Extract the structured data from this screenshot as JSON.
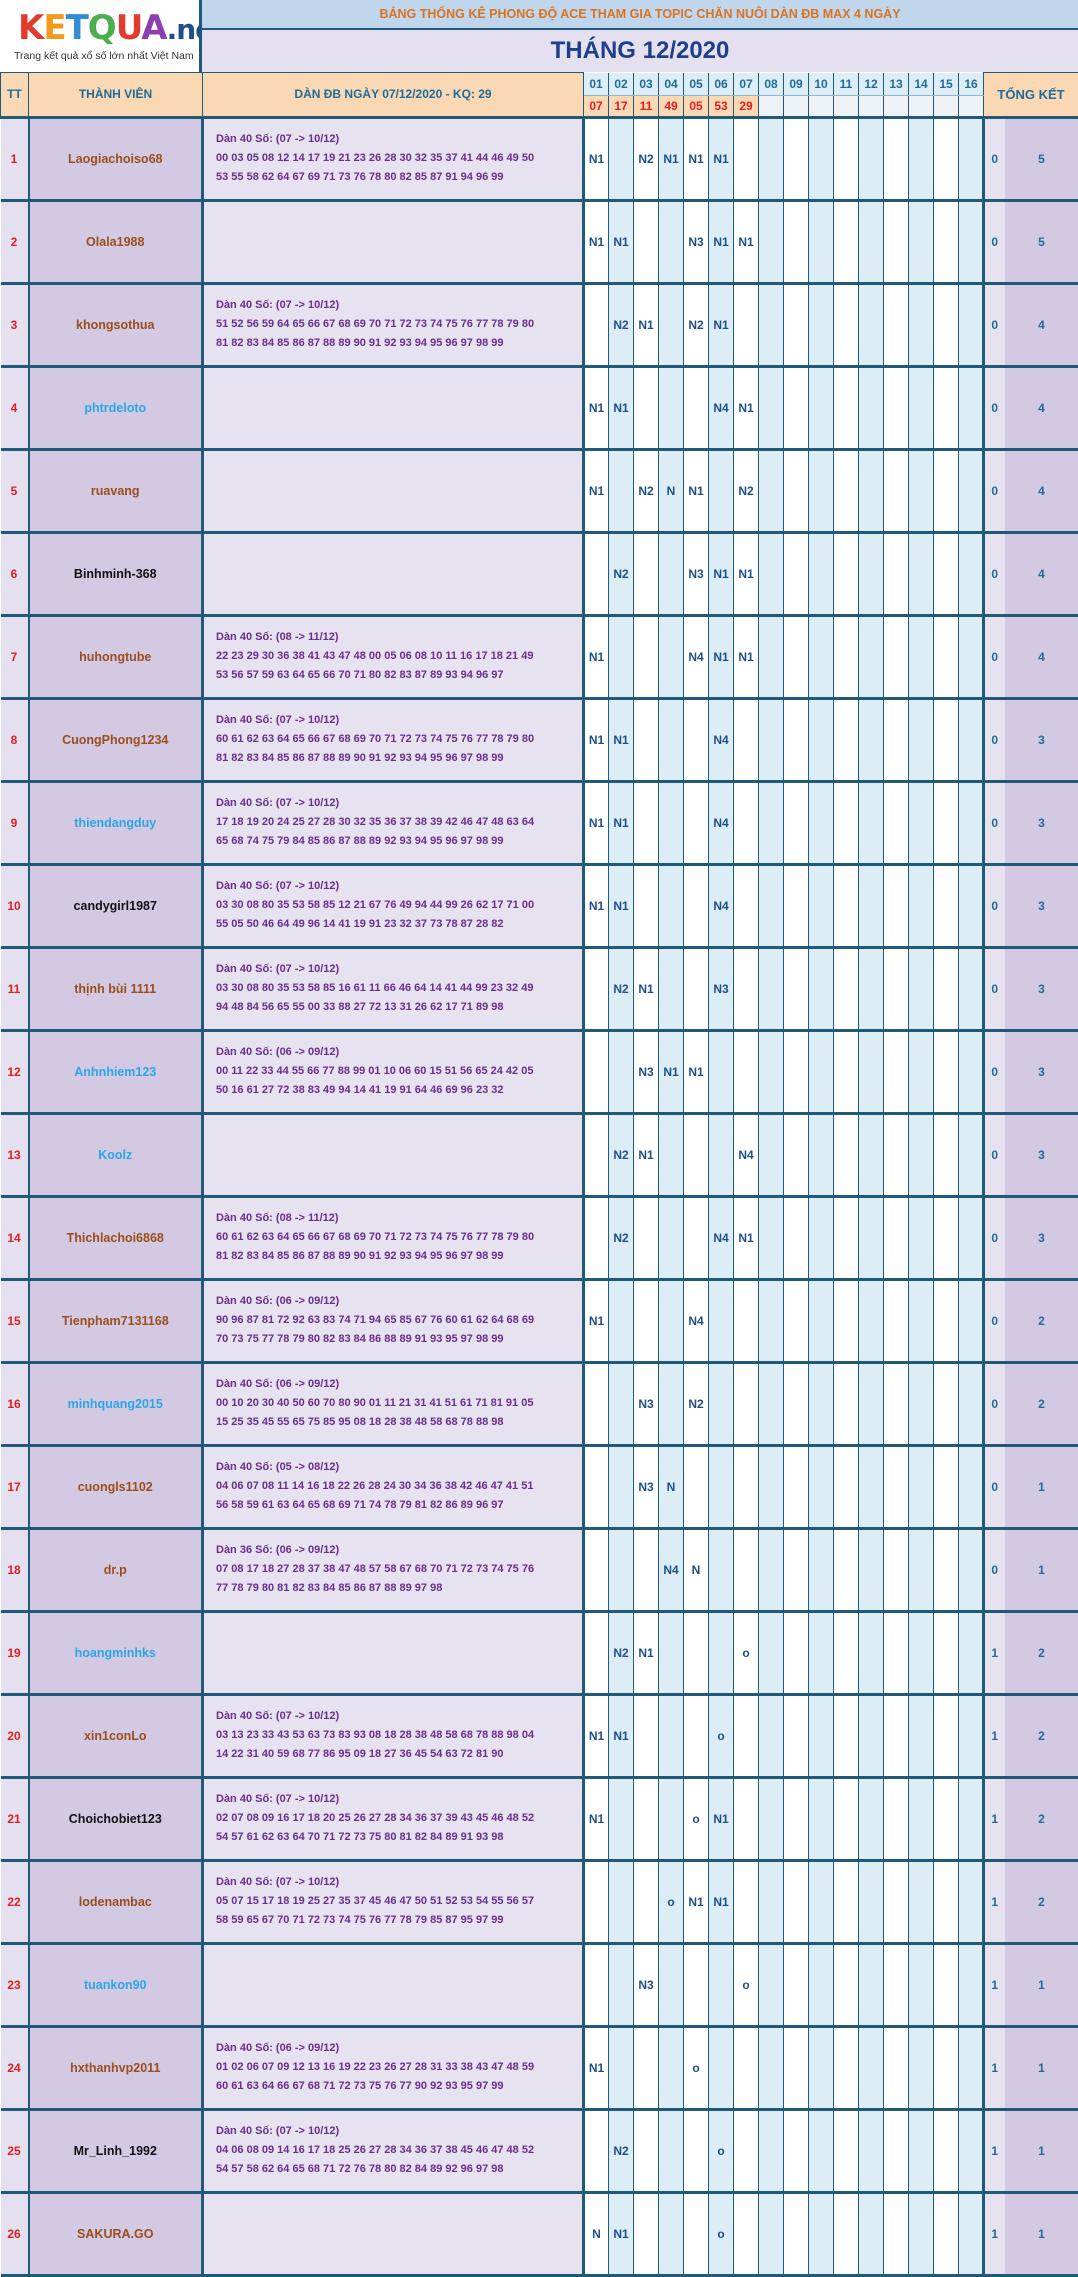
{
  "logo": {
    "word_k": "K",
    "word_e": "E",
    "word_t": "T",
    "word_q": "Q",
    "word_u": "U",
    "word_a": "A",
    "word_net": ".net",
    "tagline": "Trang kết quả xổ số lớn nhất Việt Nam"
  },
  "header": {
    "title": "BẢNG THỐNG KÊ PHONG ĐỘ ACE THAM GIA TOPIC CHĂN NUÔI DÀN ĐB MAX 4 NGÀY",
    "month": "THÁNG 12/2020",
    "col_tt": "TT",
    "col_member": "THÀNH VIÊN",
    "col_dan": "DÀN ĐB NGÀY 07/12/2020 - KQ: 29",
    "col_total": "TỔNG KẾT"
  },
  "days": [
    "01",
    "02",
    "03",
    "04",
    "05",
    "06",
    "07",
    "08",
    "09",
    "10",
    "11",
    "12",
    "13",
    "14",
    "15",
    "16"
  ],
  "results": [
    "07",
    "17",
    "11",
    "49",
    "05",
    "53",
    "29",
    "",
    "",
    "",
    "",
    "",
    "",
    "",
    "",
    ""
  ],
  "colors": {
    "brown": "#9a4e1c",
    "blue": "#2aa6e8",
    "black": "#111111"
  },
  "rows": [
    {
      "tt": "1",
      "member": "Laogiachoiso68",
      "color": "brown",
      "dan": [
        "Dàn 40 Số: (07 -> 10/12)",
        "00 03 05 08 12 14 17 19 21 23 26 28 30 32 35 37 41 44 46 49 50",
        "53 55 58 62 64 67 69 71 73 76 78 80 82 85 87 91 94 96 99"
      ],
      "cells": [
        "N1",
        "",
        "N2",
        "N1",
        "N1",
        "N1",
        "",
        "",
        "",
        "",
        "",
        "",
        "",
        "",
        "",
        ""
      ],
      "s1": "0",
      "s2": "5"
    },
    {
      "tt": "2",
      "member": "Olala1988",
      "color": "brown",
      "dan": [],
      "cells": [
        "N1",
        "N1",
        "",
        "",
        "N3",
        "N1",
        "N1",
        "",
        "",
        "",
        "",
        "",
        "",
        "",
        "",
        ""
      ],
      "s1": "0",
      "s2": "5"
    },
    {
      "tt": "3",
      "member": "khongsothua",
      "color": "brown",
      "dan": [
        "Dàn 40 Số: (07 -> 10/12)",
        "51 52 56 59 64 65 66 67 68 69 70 71 72 73 74 75 76 77 78 79 80",
        "81 82 83 84 85 86 87 88 89 90 91 92 93 94 95 96 97 98 99"
      ],
      "cells": [
        "",
        "N2",
        "N1",
        "",
        "N2",
        "N1",
        "",
        "",
        "",
        "",
        "",
        "",
        "",
        "",
        "",
        ""
      ],
      "s1": "0",
      "s2": "4"
    },
    {
      "tt": "4",
      "member": "phtrdeloto",
      "color": "blue",
      "dan": [],
      "cells": [
        "N1",
        "N1",
        "",
        "",
        "",
        "N4",
        "N1",
        "",
        "",
        "",
        "",
        "",
        "",
        "",
        "",
        ""
      ],
      "s1": "0",
      "s2": "4"
    },
    {
      "tt": "5",
      "member": "ruavang",
      "color": "brown",
      "dan": [],
      "cells": [
        "N1",
        "",
        "N2",
        "N",
        "N1",
        "",
        "N2",
        "",
        "",
        "",
        "",
        "",
        "",
        "",
        "",
        ""
      ],
      "s1": "0",
      "s2": "4"
    },
    {
      "tt": "6",
      "member": "Binhminh-368",
      "color": "black",
      "dan": [],
      "cells": [
        "",
        "N2",
        "",
        "",
        "N3",
        "N1",
        "N1",
        "",
        "",
        "",
        "",
        "",
        "",
        "",
        "",
        ""
      ],
      "s1": "0",
      "s2": "4"
    },
    {
      "tt": "7",
      "member": "huhongtube",
      "color": "brown",
      "dan": [
        "Dàn 40 Số: (08 -> 11/12)",
        "22 23 29 30 36 38 41 43 47 48 00 05 06 08 10 11 16 17 18 21 49",
        "53 56 57 59 63 64 65 66 70 71 80 82 83 87 89 93 94 96 97"
      ],
      "cells": [
        "N1",
        "",
        "",
        "",
        "N4",
        "N1",
        "N1",
        "",
        "",
        "",
        "",
        "",
        "",
        "",
        "",
        ""
      ],
      "s1": "0",
      "s2": "4"
    },
    {
      "tt": "8",
      "member": "CuongPhong1234",
      "color": "brown",
      "dan": [
        "Dàn 40 Số: (07 -> 10/12)",
        "60 61 62 63 64 65 66 67 68 69 70 71 72 73 74 75 76 77 78 79 80",
        "81 82 83 84 85 86 87 88 89 90 91 92 93 94 95 96 97 98 99"
      ],
      "cells": [
        "N1",
        "N1",
        "",
        "",
        "",
        "N4",
        "",
        "",
        "",
        "",
        "",
        "",
        "",
        "",
        "",
        ""
      ],
      "s1": "0",
      "s2": "3"
    },
    {
      "tt": "9",
      "member": "thiendangduy",
      "color": "blue",
      "dan": [
        "Dàn 40 Số: (07 -> 10/12)",
        "17 18 19 20 24 25 27 28 30 32 35 36 37 38 39 42 46 47 48 63 64",
        "65 68 74 75 79 84 85 86 87 88 89 92 93 94 95 96 97 98 99"
      ],
      "cells": [
        "N1",
        "N1",
        "",
        "",
        "",
        "N4",
        "",
        "",
        "",
        "",
        "",
        "",
        "",
        "",
        "",
        ""
      ],
      "s1": "0",
      "s2": "3"
    },
    {
      "tt": "10",
      "member": "candygirl1987",
      "color": "black",
      "dan": [
        "Dàn 40 Số: (07 -> 10/12)",
        "03 30 08 80 35 53 58 85 12 21 67 76 49 94 44 99 26 62 17 71 00",
        "55 05 50 46 64 49 96 14 41 19 91 23 32 37 73 78 87 28 82"
      ],
      "cells": [
        "N1",
        "N1",
        "",
        "",
        "",
        "N4",
        "",
        "",
        "",
        "",
        "",
        "",
        "",
        "",
        "",
        ""
      ],
      "s1": "0",
      "s2": "3"
    },
    {
      "tt": "11",
      "member": "thịnh bùi 1111",
      "color": "brown",
      "dan": [
        "Dàn 40 Số: (07 -> 10/12)",
        "03 30 08 80 35 53 58 85 16 61 11 66 46 64 14 41 44 99 23 32 49",
        "94 48 84 56 65 55 00 33 88 27 72 13 31 26 62 17 71 89 98"
      ],
      "cells": [
        "",
        "N2",
        "N1",
        "",
        "",
        "N3",
        "",
        "",
        "",
        "",
        "",
        "",
        "",
        "",
        "",
        ""
      ],
      "s1": "0",
      "s2": "3"
    },
    {
      "tt": "12",
      "member": "Anhnhiem123",
      "color": "blue",
      "dan": [
        "Dàn 40 Số: (06 -> 09/12)",
        "00 11 22 33 44 55 66 77 88 99 01 10 06 60 15 51 56 65 24 42 05",
        "50 16 61 27 72 38 83 49 94 14 41 19 91 64 46 69 96 23 32"
      ],
      "cells": [
        "",
        "",
        "N3",
        "N1",
        "N1",
        "",
        "",
        "",
        "",
        "",
        "",
        "",
        "",
        "",
        "",
        ""
      ],
      "s1": "0",
      "s2": "3"
    },
    {
      "tt": "13",
      "member": "Koolz",
      "color": "blue",
      "dan": [],
      "cells": [
        "",
        "N2",
        "N1",
        "",
        "",
        "",
        "N4",
        "",
        "",
        "",
        "",
        "",
        "",
        "",
        "",
        ""
      ],
      "s1": "0",
      "s2": "3"
    },
    {
      "tt": "14",
      "member": "Thichlachoi6868",
      "color": "brown",
      "dan": [
        "Dàn 40 Số: (08 -> 11/12)",
        "60 61 62 63 64 65 66 67 68 69 70 71 72 73 74 75 76 77 78 79 80",
        "81 82 83 84 85 86 87 88 89 90 91 92 93 94 95 96 97 98 99"
      ],
      "cells": [
        "",
        "N2",
        "",
        "",
        "",
        "N4",
        "N1",
        "",
        "",
        "",
        "",
        "",
        "",
        "",
        "",
        ""
      ],
      "s1": "0",
      "s2": "3"
    },
    {
      "tt": "15",
      "member": "Tienpham7131168",
      "color": "brown",
      "dan": [
        "Dàn 40 Số: (06 -> 09/12)",
        "90 96 87 81 72 92 63 83 74 71 94 65 85 67 76 60 61 62 64 68 69",
        "70 73 75 77 78 79 80 82 83 84 86 88 89 91 93 95 97 98 99"
      ],
      "cells": [
        "N1",
        "",
        "",
        "",
        "N4",
        "",
        "",
        "",
        "",
        "",
        "",
        "",
        "",
        "",
        "",
        ""
      ],
      "s1": "0",
      "s2": "2"
    },
    {
      "tt": "16",
      "member": "minhquang2015",
      "color": "blue",
      "dan": [
        "Dàn 40 Số: (06 -> 09/12)",
        "00 10 20 30 40 50 60 70 80 90 01 11 21 31 41 51 61 71 81 91 05",
        "15 25 35 45 55 65 75 85 95 08 18 28 38 48 58 68 78 88 98"
      ],
      "cells": [
        "",
        "",
        "N3",
        "",
        "N2",
        "",
        "",
        "",
        "",
        "",
        "",
        "",
        "",
        "",
        "",
        ""
      ],
      "s1": "0",
      "s2": "2"
    },
    {
      "tt": "17",
      "member": "cuongls1102",
      "color": "brown",
      "dan": [
        "Dàn 40 Số: (05 -> 08/12)",
        "04 06 07 08 11 14 16 18 22 26 28 24 30 34 36 38 42 46 47 41 51",
        "56 58 59 61 63 64 65 68 69 71 74 78 79 81 82 86 89 96 97"
      ],
      "cells": [
        "",
        "",
        "N3",
        "N",
        "",
        "",
        "",
        "",
        "",
        "",
        "",
        "",
        "",
        "",
        "",
        ""
      ],
      "s1": "0",
      "s2": "1"
    },
    {
      "tt": "18",
      "member": "dr.p",
      "color": "brown",
      "dan": [
        "Dàn 36 Số: (06 -> 09/12)",
        "07 08 17 18 27 28 37 38 47 48 57 58 67 68 70 71 72 73 74 75 76",
        "77 78 79 80 81 82 83 84 85 86 87 88 89 97 98"
      ],
      "cells": [
        "",
        "",
        "",
        "N4",
        "N",
        "",
        "",
        "",
        "",
        "",
        "",
        "",
        "",
        "",
        "",
        ""
      ],
      "s1": "0",
      "s2": "1"
    },
    {
      "tt": "19",
      "member": "hoangminhks",
      "color": "blue",
      "dan": [],
      "cells": [
        "",
        "N2",
        "N1",
        "",
        "",
        "",
        "o",
        "",
        "",
        "",
        "",
        "",
        "",
        "",
        "",
        ""
      ],
      "s1": "1",
      "s2": "2"
    },
    {
      "tt": "20",
      "member": "xin1conLo",
      "color": "brown",
      "dan": [
        "Dàn 40 Số: (07 -> 10/12)",
        "03 13 23 33 43 53 63 73 83 93 08 18 28 38 48 58 68 78 88 98 04",
        "14 22 31 40 59 68 77 86 95 09 18 27 36 45 54 63 72 81 90"
      ],
      "cells": [
        "N1",
        "N1",
        "",
        "",
        "",
        "o",
        "",
        "",
        "",
        "",
        "",
        "",
        "",
        "",
        "",
        ""
      ],
      "s1": "1",
      "s2": "2"
    },
    {
      "tt": "21",
      "member": "Choichobiet123",
      "color": "black",
      "dan": [
        "Dàn 40 Số: (07 -> 10/12)",
        "02 07 08 09 16 17 18 20 25 26 27 28 34 36 37 39 43 45 46 48 52",
        "54 57 61 62 63 64 70 71 72 73 75 80 81 82 84 89 91 93 98"
      ],
      "cells": [
        "N1",
        "",
        "",
        "",
        "o",
        "N1",
        "",
        "",
        "",
        "",
        "",
        "",
        "",
        "",
        "",
        ""
      ],
      "s1": "1",
      "s2": "2"
    },
    {
      "tt": "22",
      "member": "lodenambac",
      "color": "brown",
      "dan": [
        "Dàn 40 Số: (07 -> 10/12)",
        "05 07 15 17 18 19 25 27 35 37 45 46 47 50 51 52 53 54 55 56 57",
        "58 59 65 67 70 71 72 73 74 75 76 77 78 79 85 87 95 97 99"
      ],
      "cells": [
        "",
        "",
        "",
        "o",
        "N1",
        "N1",
        "",
        "",
        "",
        "",
        "",
        "",
        "",
        "",
        "",
        ""
      ],
      "s1": "1",
      "s2": "2"
    },
    {
      "tt": "23",
      "member": "tuankon90",
      "color": "blue",
      "dan": [],
      "cells": [
        "",
        "",
        "N3",
        "",
        "",
        "",
        "o",
        "",
        "",
        "",
        "",
        "",
        "",
        "",
        "",
        ""
      ],
      "s1": "1",
      "s2": "1"
    },
    {
      "tt": "24",
      "member": "hxthanhvp2011",
      "color": "brown",
      "dan": [
        "Dàn 40 Số: (06 -> 09/12)",
        "01 02 06 07 09 12 13 16 19 22 23 26 27 28 31 33 38 43 47 48 59",
        "60 61 63 64 66 67 68 71 72 73 75 76 77 90 92 93 95 97 99"
      ],
      "cells": [
        "N1",
        "",
        "",
        "",
        "o",
        "",
        "",
        "",
        "",
        "",
        "",
        "",
        "",
        "",
        "",
        ""
      ],
      "s1": "1",
      "s2": "1"
    },
    {
      "tt": "25",
      "member": "Mr_Linh_1992",
      "color": "black",
      "dan": [
        "Dàn 40 Số: (07 -> 10/12)",
        "04 06 08 09 14 16 17 18 25 26 27 28 34 36 37 38 45 46 47 48 52",
        "54 57 58 62 64 65 68 71 72 76 78 80 82 84 89 92 96 97 98"
      ],
      "cells": [
        "",
        "N2",
        "",
        "",
        "",
        "o",
        "",
        "",
        "",
        "",
        "",
        "",
        "",
        "",
        "",
        ""
      ],
      "s1": "1",
      "s2": "1"
    },
    {
      "tt": "26",
      "member": "SAKURA.GO",
      "color": "brown",
      "dan": [],
      "cells": [
        "N",
        "N1",
        "",
        "",
        "",
        "o",
        "",
        "",
        "",
        "",
        "",
        "",
        "",
        "",
        "",
        ""
      ],
      "s1": "1",
      "s2": "1"
    }
  ]
}
